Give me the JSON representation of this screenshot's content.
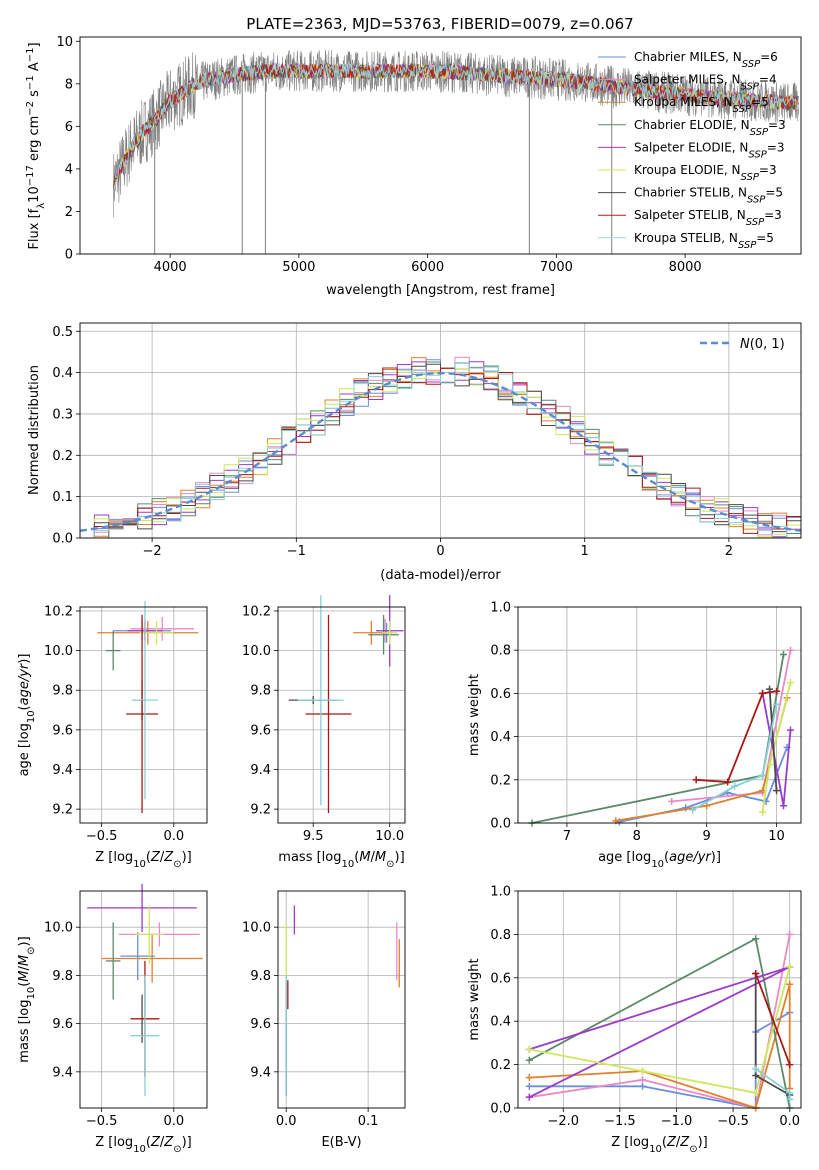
{
  "figure_title": "PLATE=2363, MJD=53763, FIBERID=0079, z=0.067",
  "model_colors": [
    "#6a8ee0",
    "#e98ac6",
    "#c98b2e",
    "#5a8a68",
    "#9b3cc7",
    "#e6e24c",
    "#4a4a4a",
    "#c01818",
    "#9ad8e0"
  ],
  "panel_model_colors": [
    "#6a8ee0",
    "#e98ac6",
    "#e0812d",
    "#5a8a68",
    "#9b3cc7",
    "#cde85a",
    "#4a4a4a",
    "#a81818",
    "#88d0d6"
  ],
  "chart_data": [
    {
      "id": "spectrum",
      "type": "line",
      "title": "PLATE=2363, MJD=53763, FIBERID=0079, z=0.067",
      "xlabel": "wavelength [Angstrom, rest frame]",
      "ylabel": "Flux [f_λ 10^-17 erg cm^-2 s^-1 A^-1]",
      "xlim": [
        3300,
        8900
      ],
      "ylim": [
        0,
        10.2
      ],
      "xticks": [
        4000,
        5000,
        6000,
        7000,
        8000
      ],
      "yticks": [
        0,
        2,
        4,
        6,
        8,
        10
      ],
      "grid": false,
      "legend_position": "top-right",
      "legend": [
        "Chabrier MILES, N_SSP=6",
        "Salpeter MILES, N_SSP=4",
        "Kroupa MILES, N_SSP=5",
        "Chabrier ELODIE, N_SSP=3",
        "Salpeter ELODIE, N_SSP=3",
        "Kroupa ELODIE, N_SSP=3",
        "Chabrier STELIB, N_SSP=5",
        "Salpeter STELIB, N_SSP=3",
        "Kroupa STELIB, N_SSP=5"
      ],
      "data_continuum": {
        "x": [
          3600,
          3700,
          3800,
          3900,
          4000,
          4100,
          4200,
          4400,
          4600,
          4800,
          5000,
          5200,
          5500,
          5800,
          6000,
          6200,
          6500,
          6800,
          7000,
          7200,
          7400,
          7600,
          7800,
          8000,
          8300,
          8800
        ],
        "y": [
          3.8,
          5.0,
          5.8,
          6.4,
          7.2,
          7.6,
          8.0,
          8.3,
          8.5,
          8.6,
          8.6,
          8.6,
          8.6,
          8.6,
          8.6,
          8.55,
          8.4,
          8.3,
          8.2,
          8.1,
          7.9,
          7.75,
          7.6,
          7.5,
          7.3,
          7.1
        ]
      }
    },
    {
      "id": "residuals",
      "type": "step",
      "xlabel": "(data-model)/error",
      "ylabel": "Normed distribution",
      "xlim": [
        -2.5,
        2.5
      ],
      "ylim": [
        0,
        0.52
      ],
      "xticks": [
        -2,
        -1,
        0,
        1,
        2
      ],
      "yticks": [
        0.0,
        0.1,
        0.2,
        0.3,
        0.4,
        0.5
      ],
      "grid": true,
      "legend_position": "top-right",
      "reference_curve": {
        "label": "N(0,1)",
        "mean": 0,
        "sigma": 1,
        "color": "#5b8bd0"
      },
      "bin_width": 0.1
    },
    {
      "id": "age_vs_Z",
      "type": "errorbar",
      "xlabel": "Z [log10(Z/Z⊙)]",
      "ylabel": "age [log10(age/yr)]",
      "xlim": [
        -0.65,
        0.23
      ],
      "ylim": [
        9.13,
        10.22
      ],
      "xticks": [
        -0.5,
        0.0
      ],
      "yticks": [
        9.2,
        9.4,
        9.6,
        9.8,
        10.0,
        10.2
      ],
      "grid": true,
      "points": [
        {
          "x": -0.22,
          "y": 10.1,
          "xerr": 0.2,
          "yerr": 0.05
        },
        {
          "x": -0.08,
          "y": 10.11,
          "xerr": 0.22,
          "yerr": 0.06
        },
        {
          "x": -0.18,
          "y": 10.09,
          "xerr": 0.35,
          "yerr": 0.06
        },
        {
          "x": -0.42,
          "y": 10.0,
          "xerr": 0.05,
          "yerr": 0.1
        },
        {
          "x": -0.2,
          "y": 10.1,
          "xerr": 0.12,
          "yerr": 0.05
        },
        {
          "x": -0.12,
          "y": 10.09,
          "xerr": 0.12,
          "yerr": 0.06
        },
        {
          "x": -0.22,
          "y": 9.75,
          "xerr": 0.02,
          "yerr": 0.1
        },
        {
          "x": -0.22,
          "y": 9.68,
          "xerr": 0.11,
          "yerr": 0.5
        },
        {
          "x": -0.2,
          "y": 9.75,
          "xerr": 0.09,
          "yerr": 0.5
        }
      ]
    },
    {
      "id": "age_vs_mass",
      "type": "errorbar",
      "xlabel": "mass [log10(M/M⊙)]",
      "ylabel": "",
      "xlim": [
        9.27,
        10.1
      ],
      "ylim": [
        9.13,
        10.22
      ],
      "xticks": [
        9.5,
        10.0
      ],
      "yticks": [
        9.2,
        9.4,
        9.6,
        9.8,
        10.0,
        10.2
      ],
      "grid": true,
      "points": [
        {
          "x": 9.98,
          "y": 10.09,
          "xerr": 0.04,
          "yerr": 0.05
        },
        {
          "x": 9.97,
          "y": 10.1,
          "xerr": 0.05,
          "yerr": 0.06
        },
        {
          "x": 9.88,
          "y": 10.09,
          "xerr": 0.12,
          "yerr": 0.06
        },
        {
          "x": 9.96,
          "y": 10.08,
          "xerr": 0.1,
          "yerr": 0.1
        },
        {
          "x": 10.0,
          "y": 10.1,
          "xerr": 0.09,
          "yerr": 0.18
        },
        {
          "x": 10.0,
          "y": 10.09,
          "xerr": 0.05,
          "yerr": 0.06
        },
        {
          "x": 9.5,
          "y": 9.75,
          "xerr": 0.16,
          "yerr": 0.02
        },
        {
          "x": 9.6,
          "y": 9.68,
          "xerr": 0.15,
          "yerr": 0.5
        },
        {
          "x": 9.55,
          "y": 9.75,
          "xerr": 0.15,
          "yerr": 0.53
        }
      ]
    },
    {
      "id": "weight_vs_age",
      "type": "line",
      "xlabel": "age [log10(age/yr)]",
      "ylabel": "mass weight",
      "xlim": [
        6.3,
        10.35
      ],
      "ylim": [
        0,
        1.0
      ],
      "xticks": [
        7,
        8,
        9,
        10
      ],
      "yticks": [
        0.0,
        0.2,
        0.4,
        0.6,
        0.8,
        1.0
      ],
      "grid": true,
      "series": [
        {
          "x": [
            7.75,
            8.7,
            9.3,
            9.85,
            10.15
          ],
          "y": [
            0.005,
            0.07,
            0.14,
            0.1,
            0.35
          ]
        },
        {
          "x": [
            8.5,
            9.8,
            10.2
          ],
          "y": [
            0.1,
            0.14,
            0.8
          ]
        },
        {
          "x": [
            7.7,
            9.0,
            9.8,
            10.15
          ],
          "y": [
            0.01,
            0.08,
            0.15,
            0.58
          ]
        },
        {
          "x": [
            6.5,
            9.8,
            10.1
          ],
          "y": [
            0.0,
            0.22,
            0.78
          ]
        },
        {
          "x": [
            9.8,
            10.1,
            10.2
          ],
          "y": [
            0.6,
            0.08,
            0.43
          ]
        },
        {
          "x": [
            9.8,
            9.9,
            10.2
          ],
          "y": [
            0.05,
            0.27,
            0.65
          ]
        },
        {
          "x": [
            9.9,
            10.0
          ],
          "y": [
            0.62,
            0.15
          ]
        },
        {
          "x": [
            8.85,
            9.3,
            9.8,
            10.0
          ],
          "y": [
            0.2,
            0.19,
            0.6,
            0.61
          ]
        },
        {
          "x": [
            8.8,
            9.4,
            9.8,
            10.0
          ],
          "y": [
            0.06,
            0.17,
            0.22,
            0.55
          ]
        }
      ]
    },
    {
      "id": "mass_vs_Z",
      "type": "errorbar",
      "xlabel": "Z [log10(Z/Z⊙)]",
      "ylabel": "mass [log10(M/M⊙)]",
      "xlim": [
        -0.65,
        0.23
      ],
      "ylim": [
        9.25,
        10.15
      ],
      "xticks": [
        -0.5,
        0.0
      ],
      "yticks": [
        9.4,
        9.6,
        9.8,
        10.0
      ],
      "grid": true,
      "points": [
        {
          "x": -0.25,
          "y": 9.88,
          "xerr": 0.12,
          "yerr": 0.1
        },
        {
          "x": -0.1,
          "y": 9.97,
          "xerr": 0.28,
          "yerr": 0.05
        },
        {
          "x": -0.15,
          "y": 9.87,
          "xerr": 0.35,
          "yerr": 0.1
        },
        {
          "x": -0.42,
          "y": 9.86,
          "xerr": 0.05,
          "yerr": 0.16
        },
        {
          "x": -0.22,
          "y": 10.08,
          "xerr": 0.38,
          "yerr": 0.1
        },
        {
          "x": -0.17,
          "y": 9.97,
          "xerr": 0.1,
          "yerr": 0.12
        },
        {
          "x": -0.22,
          "y": 9.62,
          "xerr": 0.01,
          "yerr": 0.1
        },
        {
          "x": -0.2,
          "y": 9.62,
          "xerr": 0.1,
          "yerr": 0.24
        },
        {
          "x": -0.2,
          "y": 9.55,
          "xerr": 0.1,
          "yerr": 0.25
        }
      ]
    },
    {
      "id": "mass_vs_ebv",
      "type": "errorbar",
      "xlabel": "E(B-V)",
      "ylabel": "",
      "xlim": [
        -0.01,
        0.145
      ],
      "ylim": [
        9.25,
        10.15
      ],
      "xticks": [
        0.0,
        0.1
      ],
      "yticks": [
        9.4,
        9.6,
        9.8,
        10.0
      ],
      "grid": true,
      "points": [
        {
          "x": 0.0,
          "y": 9.5,
          "xerr": 0.0,
          "yerr": 0.2
        },
        {
          "x": 0.135,
          "y": 9.9,
          "xerr": 0.0,
          "yerr": 0.12
        },
        {
          "x": 0.138,
          "y": 9.85,
          "xerr": 0.0,
          "yerr": 0.1
        },
        {
          "x": 0.0,
          "y": 9.7,
          "xerr": 0.0,
          "yerr": 0.1
        },
        {
          "x": 0.01,
          "y": 10.03,
          "xerr": 0.0,
          "yerr": 0.06
        },
        {
          "x": 0.0,
          "y": 9.9,
          "xerr": 0.0,
          "yerr": 0.12
        },
        {
          "x": 0.0,
          "y": 9.45,
          "xerr": 0.0,
          "yerr": 0.15
        },
        {
          "x": 0.002,
          "y": 9.72,
          "xerr": 0.0,
          "yerr": 0.06
        },
        {
          "x": 0.0,
          "y": 9.55,
          "xerr": 0.0,
          "yerr": 0.25
        }
      ]
    },
    {
      "id": "weight_vs_Z",
      "type": "line",
      "xlabel": "Z [log10(Z/Z⊙)]",
      "ylabel": "mass weight",
      "xlim": [
        -2.4,
        0.1
      ],
      "ylim": [
        0,
        1.0
      ],
      "xticks": [
        -2.0,
        -1.5,
        -1.0,
        -0.5,
        0.0
      ],
      "yticks": [
        0.0,
        0.2,
        0.4,
        0.6,
        0.8,
        1.0
      ],
      "grid": true,
      "series": [
        {
          "x": [
            -2.3,
            -1.3,
            -0.3,
            -0.3,
            0.0
          ],
          "y": [
            0.1,
            0.1,
            0.0,
            0.35,
            0.44
          ]
        },
        {
          "x": [
            -2.3,
            -1.3,
            -0.3,
            0.0
          ],
          "y": [
            0.05,
            0.13,
            0.0,
            0.8
          ]
        },
        {
          "x": [
            -2.3,
            -1.3,
            -0.3,
            0.0,
            0.0
          ],
          "y": [
            0.14,
            0.17,
            0.0,
            0.57,
            0.09
          ]
        },
        {
          "x": [
            -2.3,
            -0.3,
            0.0
          ],
          "y": [
            0.22,
            0.78,
            0.0
          ]
        },
        {
          "x": [
            -2.3,
            0.0,
            -2.3
          ],
          "y": [
            0.27,
            0.65,
            0.05
          ]
        },
        {
          "x": [
            -2.3,
            -1.3,
            -0.3,
            0.0
          ],
          "y": [
            0.27,
            0.17,
            0.07,
            0.65
          ]
        },
        {
          "x": [
            -0.3,
            -0.3,
            0.0
          ],
          "y": [
            0.62,
            0.15,
            0.06
          ]
        },
        {
          "x": [
            -0.3,
            0.0
          ],
          "y": [
            0.62,
            0.2
          ]
        },
        {
          "x": [
            -0.3,
            0.0,
            0.0
          ],
          "y": [
            0.18,
            0.07,
            0.04
          ]
        }
      ]
    }
  ]
}
